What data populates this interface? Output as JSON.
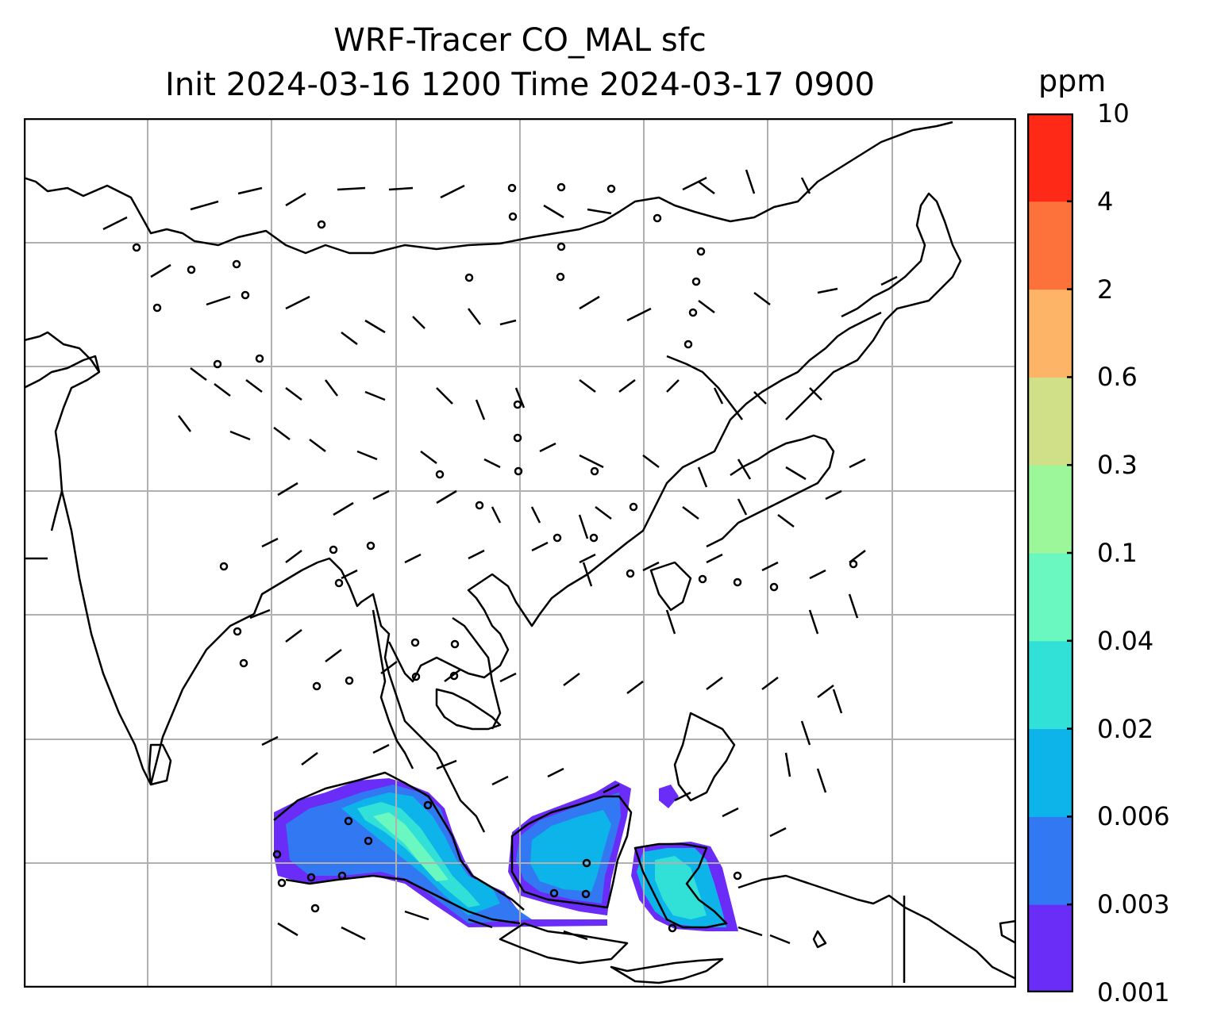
{
  "title": {
    "line1": "WRF-Tracer CO_MAL sfc",
    "line2": "Init 2024-03-16 1200 Time 2024-03-17 0900"
  },
  "colorbar": {
    "unit": "ppm",
    "ticks": [
      "0.001",
      "0.003",
      "0.006",
      "0.02",
      "0.04",
      "0.1",
      "0.3",
      "0.6",
      "2",
      "4",
      "10"
    ],
    "colors": [
      "#6a2cf7",
      "#3278f2",
      "#0cb4ea",
      "#31e0d6",
      "#6bf7c0",
      "#9cf79a",
      "#cfe088",
      "#fdb466",
      "#fd723b",
      "#fe2917"
    ]
  },
  "map": {
    "gridlines": true,
    "wind_barbs": true,
    "colors": {
      "coast": "#000000",
      "grid": "#b0b0b0"
    }
  }
}
